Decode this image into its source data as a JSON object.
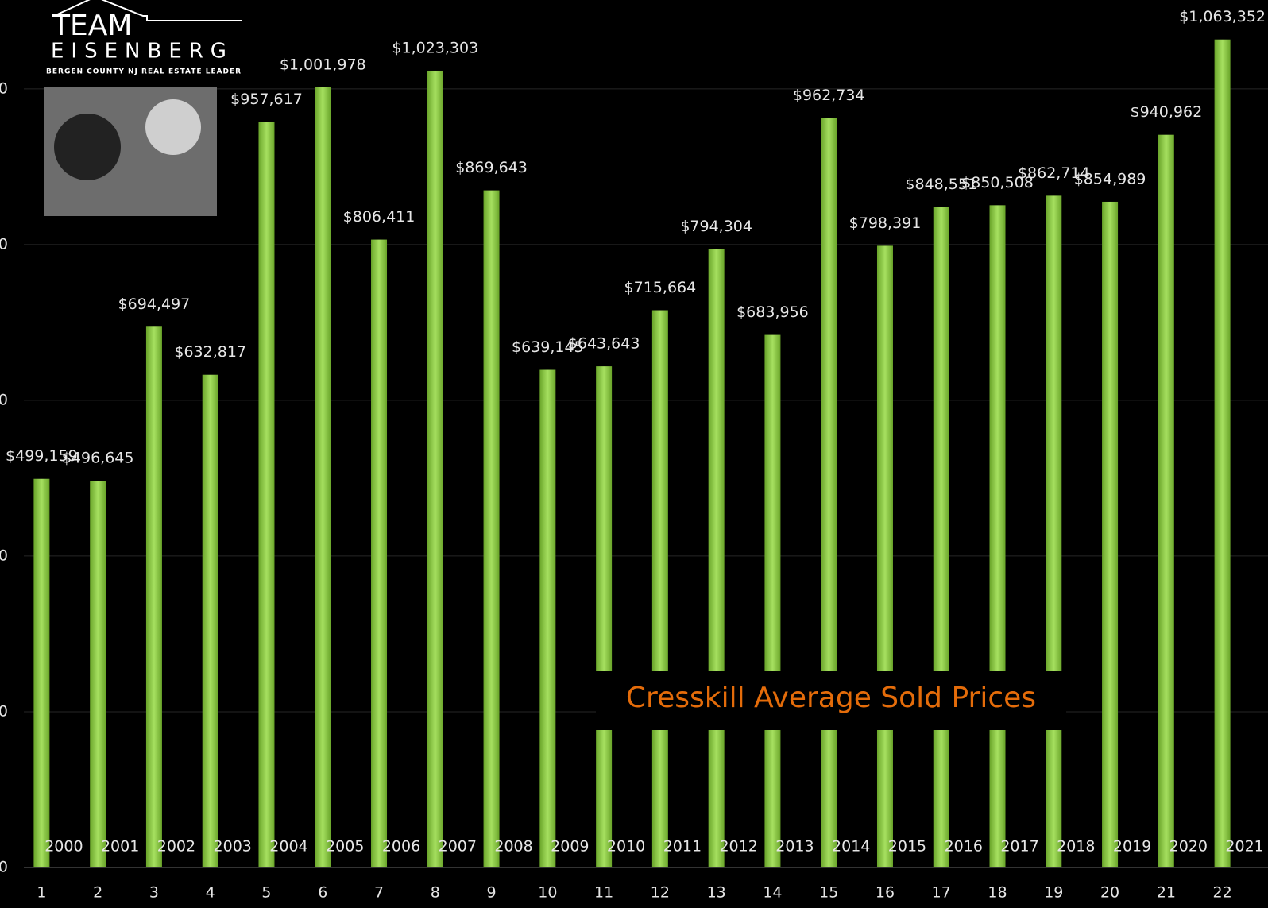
{
  "chart_data": {
    "type": "bar",
    "title": "Cresskill Average Sold Prices",
    "logo": {
      "name": "TEAM",
      "surname": "EISENBERG",
      "tagline": "BERGEN COUNTY NJ REAL ESTATE LEADER"
    },
    "categories": [
      "1",
      "2",
      "3",
      "4",
      "5",
      "6",
      "7",
      "8",
      "9",
      "10",
      "11",
      "12",
      "13",
      "14",
      "15",
      "16",
      "17",
      "18",
      "19",
      "20",
      "21",
      "22"
    ],
    "year_labels": [
      "2000",
      "2001",
      "2002",
      "2003",
      "2004",
      "2005",
      "2006",
      "2007",
      "2008",
      "2009",
      "2010",
      "2011",
      "2012",
      "2013",
      "2014",
      "2015",
      "2016",
      "2017",
      "2018",
      "2019",
      "2020",
      "2021"
    ],
    "values": [
      499159,
      496645,
      694497,
      632817,
      957617,
      1001978,
      806411,
      1023303,
      869643,
      639145,
      643643,
      715664,
      794304,
      683956,
      962734,
      798391,
      848551,
      850508,
      862714,
      854989,
      940962,
      1063352
    ],
    "value_labels": [
      "$499,159",
      "$496,645",
      "$694,497",
      "$632,817",
      "$957,617",
      "$1,001,978",
      "$806,411",
      "$1,023,303",
      "$869,643",
      "$639,145",
      "$643,643",
      "$715,664",
      "$794,304",
      "$683,956",
      "$962,734",
      "$798,391",
      "$848,551",
      "$850,508",
      "$862,714",
      "$854,989",
      "$940,962",
      "$1,063,352"
    ],
    "color": "#92d050",
    "ylim": [
      0,
      1110000
    ],
    "yticks": [
      {
        "value": 0,
        "label": "0"
      },
      {
        "value": 200000,
        "label": "0"
      },
      {
        "value": 400000,
        "label": "0"
      },
      {
        "value": 600000,
        "label": "0"
      },
      {
        "value": 800000,
        "label": "0"
      },
      {
        "value": 1000000,
        "label": "0"
      }
    ],
    "grid": true
  }
}
